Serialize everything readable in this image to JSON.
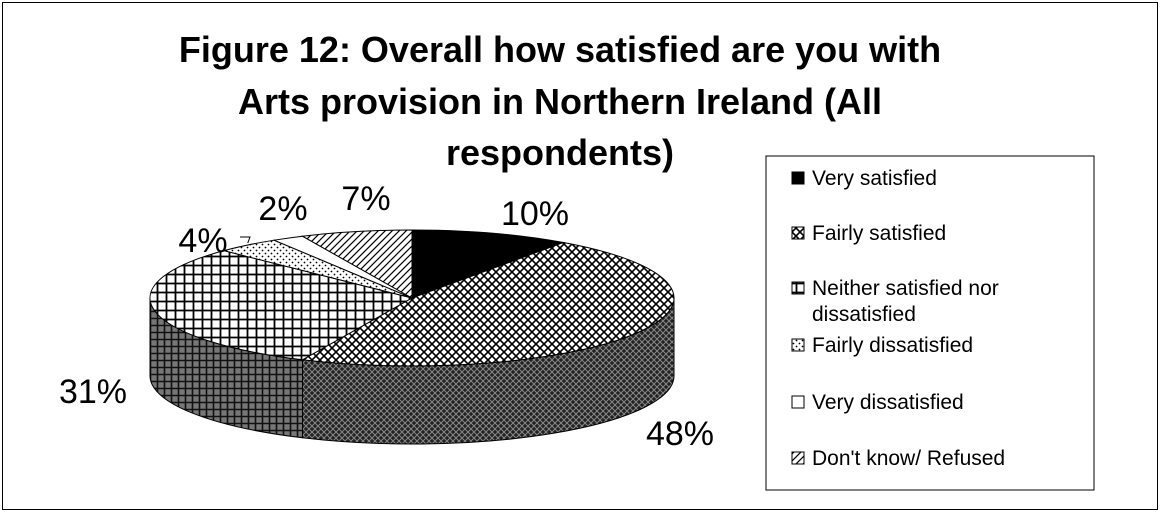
{
  "chart_data": {
    "type": "pie",
    "style": "3d-exploded",
    "title": [
      "Figure 12: Overall how satisfied are you with",
      "Arts provision in Northern Ireland (All",
      "respondents)"
    ],
    "categories": [
      "Very satisfied",
      "Fairly satisfied",
      "Neither satisfied nor dissatisfied",
      "Fairly dissatisfied",
      "Very dissatisfied",
      "Don't know/ Refused"
    ],
    "legend_lines": [
      [
        "Very satisfied"
      ],
      [
        "Fairly satisfied"
      ],
      [
        "Neither satisfied nor",
        "dissatisfied"
      ],
      [
        "Fairly dissatisfied"
      ],
      [
        "Very dissatisfied"
      ],
      [
        "Don't know/ Refused"
      ]
    ],
    "values": [
      10,
      48,
      31,
      4,
      2,
      7
    ],
    "value_labels": [
      "10%",
      "48%",
      "31%",
      "4%",
      "2%",
      "7%"
    ],
    "legend_position": "right",
    "colors": [
      "#000000",
      "#555555",
      "#ffffff",
      "#ffffff",
      "#ffffff",
      "#ffffff"
    ]
  }
}
